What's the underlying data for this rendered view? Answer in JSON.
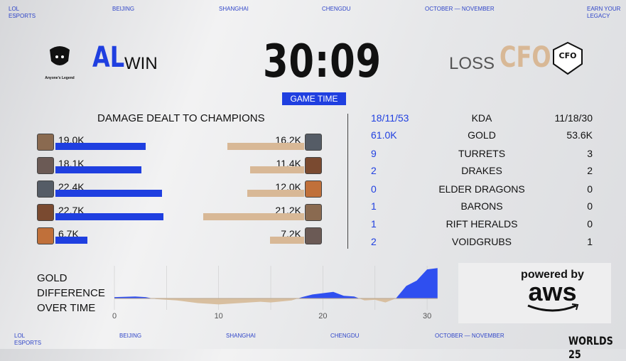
{
  "header": {
    "items": [
      "LOL\nESPORTS",
      "BEIJING",
      "SHANGHAI",
      "CHENGDU",
      "OCTOBER — NOVEMBER",
      "EARN YOUR\nLEGACY"
    ]
  },
  "footer": {
    "items": [
      "LOL\nESPORTS",
      "BEIJING",
      "SHANGHAI",
      "CHENGDU",
      "OCTOBER — NOVEMBER"
    ],
    "logo": "WORLDS 25"
  },
  "team_left": {
    "logo_text": "Anyone's Legend",
    "tag": "AL",
    "result": "WIN",
    "color": "#1f3fe0"
  },
  "team_right": {
    "tag": "CFO",
    "result": "LOSS",
    "logo_text": "CFO",
    "color": "#d8b896"
  },
  "game_time": {
    "value": "30:09",
    "label": "GAME TIME"
  },
  "damage": {
    "title": "DAMAGE DEALT TO CHAMPIONS",
    "max": 22.7,
    "left": [
      {
        "label": "19.0K",
        "value": 19.0
      },
      {
        "label": "18.1K",
        "value": 18.1
      },
      {
        "label": "22.4K",
        "value": 22.4
      },
      {
        "label": "22.7K",
        "value": 22.7
      },
      {
        "label": "6.7K",
        "value": 6.7
      }
    ],
    "right": [
      {
        "label": "16.2K",
        "value": 16.2
      },
      {
        "label": "11.4K",
        "value": 11.4
      },
      {
        "label": "12.0K",
        "value": 12.0
      },
      {
        "label": "21.2K",
        "value": 21.2
      },
      {
        "label": "7.2K",
        "value": 7.2
      }
    ]
  },
  "stats": [
    {
      "left": "18/11/53",
      "label": "KDA",
      "right": "11/18/30"
    },
    {
      "left": "61.0K",
      "label": "GOLD",
      "right": "53.6K"
    },
    {
      "left": "9",
      "label": "TURRETS",
      "right": "3"
    },
    {
      "left": "2",
      "label": "DRAKES",
      "right": "2"
    },
    {
      "left": "0",
      "label": "ELDER DRAGONS",
      "right": "0"
    },
    {
      "left": "1",
      "label": "BARONS",
      "right": "0"
    },
    {
      "left": "1",
      "label": "RIFT HERALDS",
      "right": "0"
    },
    {
      "left": "2",
      "label": "VOIDGRUBS",
      "right": "1"
    }
  ],
  "gold_chart": {
    "title_lines": [
      "GOLD",
      "DIFFERENCE",
      "OVER TIME"
    ]
  },
  "chart_data": {
    "type": "area",
    "title": "GOLD DIFFERENCE OVER TIME",
    "x_ticks": [
      0,
      10,
      20,
      30
    ],
    "xlim": [
      0,
      31
    ],
    "grid": "vertical",
    "x": [
      0,
      2,
      3,
      4,
      6,
      8,
      10,
      12,
      14,
      15,
      17,
      18,
      19,
      21,
      22,
      23,
      24,
      25,
      26,
      27,
      28,
      29,
      30,
      31
    ],
    "y": [
      0.2,
      0.3,
      0.2,
      -0.1,
      -0.3,
      -0.7,
      -0.9,
      -0.7,
      -0.5,
      -0.6,
      -0.3,
      0.2,
      0.6,
      1.0,
      0.4,
      0.3,
      -0.3,
      -0.2,
      -0.6,
      0,
      1.9,
      2.7,
      4.4,
      4.6
    ],
    "positive_color": "#2f4ff0",
    "negative_color": "#d8bfa0"
  },
  "sponsor": {
    "line1": "powered by",
    "line2": "aws"
  }
}
